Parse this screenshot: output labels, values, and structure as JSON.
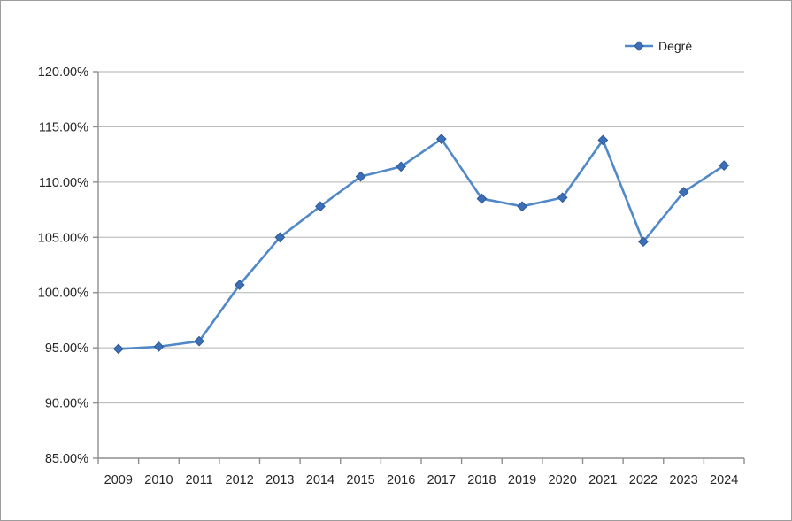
{
  "window": {
    "background": "#ffffff",
    "border_color": "#9d9d9d"
  },
  "legend": {
    "label": "Degré",
    "position": "top-right"
  },
  "chart_data": {
    "type": "line",
    "title": "",
    "xlabel": "",
    "ylabel": "",
    "categories": [
      "2009",
      "2010",
      "2011",
      "2012",
      "2013",
      "2014",
      "2015",
      "2016",
      "2017",
      "2018",
      "2019",
      "2020",
      "2021",
      "2022",
      "2023",
      "2024"
    ],
    "series": [
      {
        "name": "Degré",
        "values": [
          94.9,
          95.1,
          95.6,
          100.7,
          105.0,
          107.8,
          110.5,
          111.4,
          113.9,
          108.5,
          107.8,
          108.6,
          113.8,
          104.6,
          109.1,
          111.5
        ]
      }
    ],
    "ylim": [
      85,
      120
    ],
    "y_ticks": [
      {
        "value": 85,
        "label": "85.00%"
      },
      {
        "value": 90,
        "label": "90.00%"
      },
      {
        "value": 95,
        "label": "95.00%"
      },
      {
        "value": 100,
        "label": "100.00%"
      },
      {
        "value": 105,
        "label": "105.00%"
      },
      {
        "value": 110,
        "label": "110.00%"
      },
      {
        "value": 115,
        "label": "115.00%"
      },
      {
        "value": 120,
        "label": "120.00%"
      }
    ],
    "grid": true,
    "marker": "diamond",
    "legend_position": "top-right",
    "colors": {
      "line": "#5189c8",
      "marker_fill": "#3c6fb7",
      "marker_stroke": "#2d5a98",
      "gridline": "#b2b2b2",
      "axis": "#8e8e8e",
      "tick_text": "#262626"
    }
  }
}
